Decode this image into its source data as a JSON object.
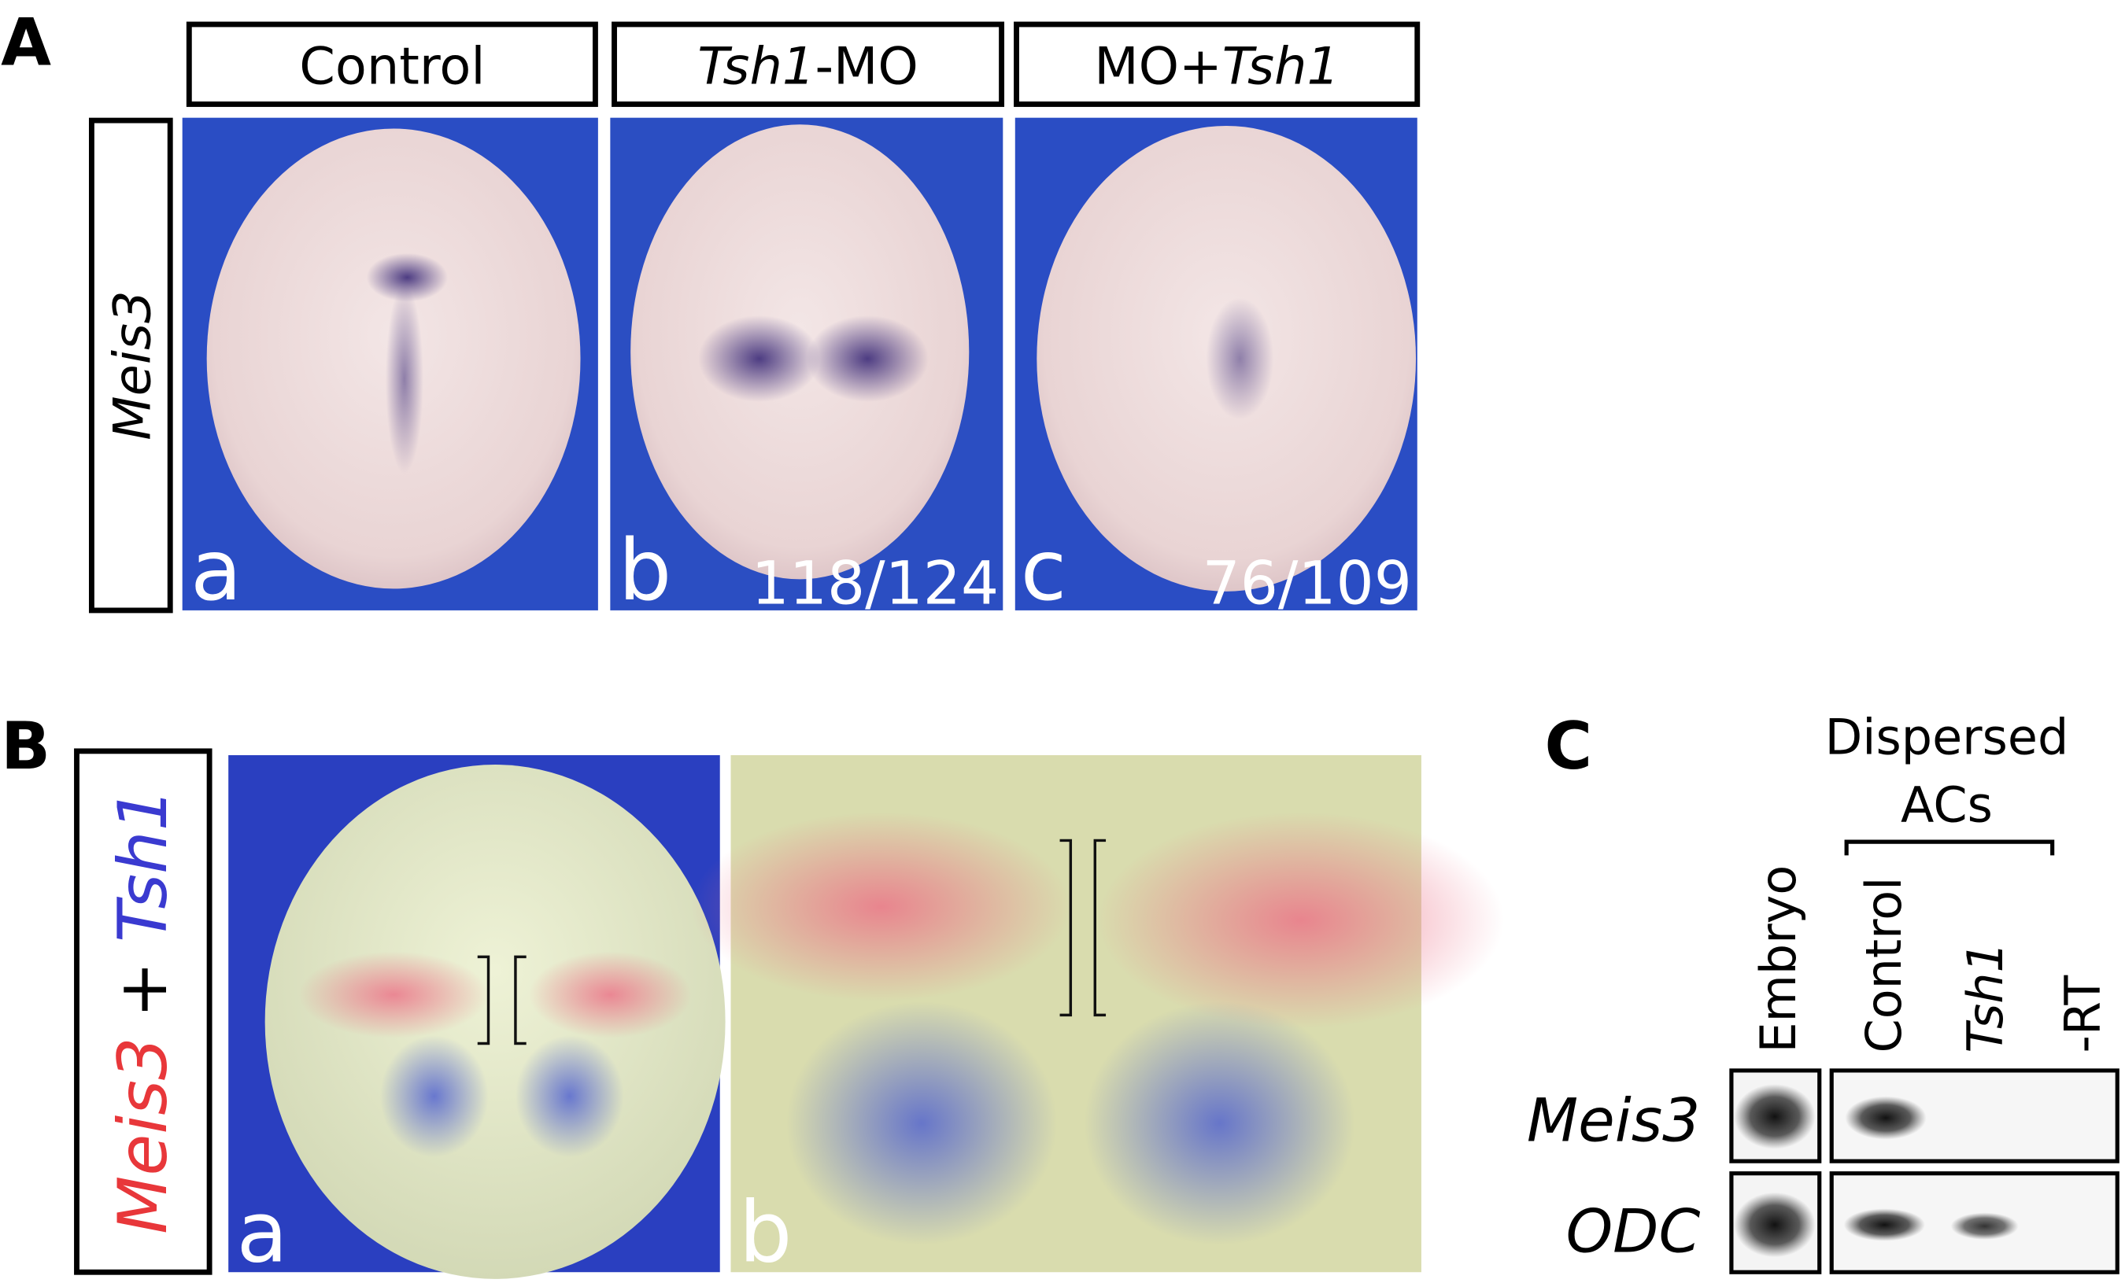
{
  "panel_a": {
    "letter": "A",
    "columns": [
      {
        "segments": [
          "Control"
        ]
      },
      {
        "segments": [
          "Tsh1",
          "-MO"
        ]
      },
      {
        "segments": [
          "MO+",
          "Tsh1"
        ]
      }
    ],
    "row_label": "Meis3",
    "images": [
      {
        "label": "a"
      },
      {
        "label": "b",
        "count": "118/124"
      },
      {
        "label": "c",
        "count": "76/109"
      }
    ]
  },
  "panel_b": {
    "letter": "B",
    "row_label": [
      "Meis3",
      "+",
      "Tsh1"
    ],
    "images": [
      {
        "label": "a"
      },
      {
        "label": "b"
      }
    ]
  },
  "panel_c": {
    "letter": "C",
    "group_label": [
      "Dispersed",
      "ACs"
    ],
    "lanes": [
      "Embryo",
      "Control",
      "Tsh1",
      "-RT"
    ],
    "rows": [
      "Meis3",
      "ODC"
    ]
  }
}
